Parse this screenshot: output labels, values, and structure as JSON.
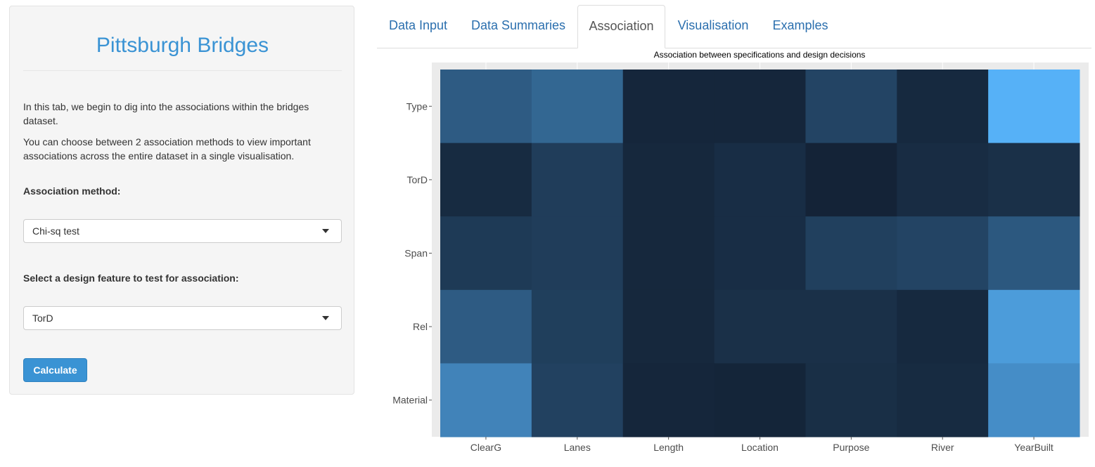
{
  "sidebar": {
    "title": "Pittsburgh Bridges",
    "intro_1": "In this tab, we begin to dig into the associations within the bridges dataset.",
    "intro_2": "You can choose between 2 association methods to view important associations across the entire dataset in a single visualisation.",
    "method_label": "Association method:",
    "method_value": "Chi-sq test",
    "feature_label": "Select a design feature to test for association:",
    "feature_value": "TorD",
    "calculate_label": "Calculate"
  },
  "tabs": [
    {
      "label": "Data Input",
      "active": false
    },
    {
      "label": "Data Summaries",
      "active": false
    },
    {
      "label": "Association",
      "active": true
    },
    {
      "label": "Visualisation",
      "active": false
    },
    {
      "label": "Examples",
      "active": false
    }
  ],
  "colors": {
    "accent": "#3a93d4",
    "tab_link": "#2b6fae",
    "panel_bg": "#ebebeb",
    "heat_low": "#132235",
    "heat_high": "#56b1f7"
  },
  "chart_data": {
    "type": "heatmap",
    "title": "Association between specifications and design decisions",
    "x_categories": [
      "ClearG",
      "Lanes",
      "Length",
      "Location",
      "Purpose",
      "River",
      "YearBuilt"
    ],
    "y_categories": [
      "Type",
      "TorD",
      "Span",
      "Rel",
      "Material"
    ],
    "values": [
      [
        0.4,
        0.48,
        0.03,
        0.03,
        0.24,
        0.05,
        1.0
      ],
      [
        0.06,
        0.19,
        0.04,
        0.08,
        0.01,
        0.07,
        0.1
      ],
      [
        0.17,
        0.19,
        0.04,
        0.08,
        0.21,
        0.24,
        0.38
      ],
      [
        0.4,
        0.2,
        0.04,
        0.1,
        0.1,
        0.05,
        0.85
      ],
      [
        0.68,
        0.22,
        0.03,
        0.02,
        0.09,
        0.06,
        0.75
      ]
    ],
    "legend": "none",
    "grid": true
  }
}
